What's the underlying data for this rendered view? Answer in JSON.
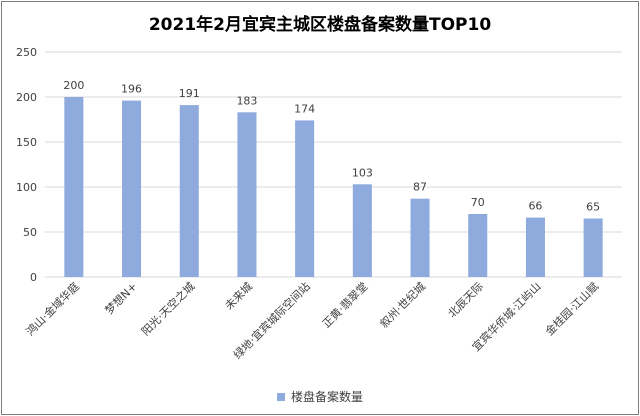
{
  "chart_data": {
    "type": "bar",
    "title": "2021年2月宜宾主城区楼盘备案数量TOP10",
    "categories": [
      "鸿山·金域华庭",
      "梦想N+",
      "阳光·天空之城",
      "未来城",
      "绿地·宜宾城际空间站",
      "正黄·翡翠堂",
      "叙州·世纪城",
      "北辰天际",
      "宜宾华侨城·江屿山",
      "金桂园·江山赋"
    ],
    "series": [
      {
        "name": "楼盘备案数量",
        "values": [
          200,
          196,
          191,
          183,
          174,
          103,
          87,
          70,
          66,
          65
        ]
      }
    ],
    "ylim": [
      0,
      250
    ],
    "yticks": [
      0,
      50,
      100,
      150,
      200,
      250
    ],
    "grid": true,
    "legend": "bottom",
    "colors": {
      "bar": "#8faadc",
      "grid": "#d9d9d9",
      "text": "#404040"
    }
  }
}
